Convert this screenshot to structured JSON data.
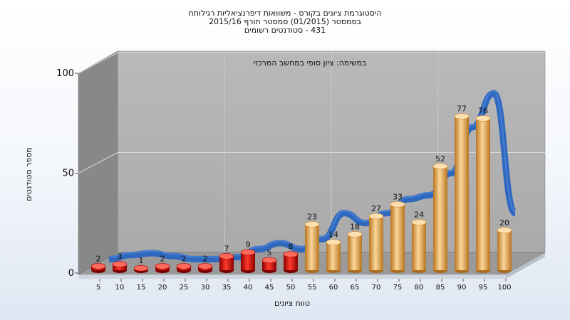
{
  "chart_data": {
    "type": "bar",
    "title_lines": [
      "היסטוגרמת ציונים בקורס - משוואות דיפרנציאליות רגילותח",
      "בסמסטר  (01/2015)  סמסטר חורף 2015/16",
      "431 - סטודנטים רשומים"
    ],
    "annotation": "במשימה: ציון סופי במחשב המרכזי",
    "xlabel": "טווח ציונים",
    "ylabel": "מספר סטודנטים",
    "categories": [
      "5",
      "10",
      "15",
      "20",
      "25",
      "30",
      "35",
      "40",
      "45",
      "50",
      "55",
      "60",
      "65",
      "70",
      "75",
      "80",
      "85",
      "90",
      "95",
      "100"
    ],
    "values": [
      2,
      3,
      1,
      2,
      2,
      2,
      7,
      9,
      5,
      8,
      23,
      14,
      18,
      27,
      33,
      24,
      52,
      77,
      76,
      20
    ],
    "ylim": [
      0,
      100
    ],
    "yticks": [
      0,
      50,
      100
    ],
    "trend": [
      2,
      4,
      5,
      3.5,
      2,
      2,
      3,
      7,
      10,
      7,
      12,
      25,
      20,
      25,
      32,
      34,
      45,
      68,
      85,
      25
    ],
    "red_threshold": 50,
    "colors": {
      "fail": "#e01010",
      "pass": "#f2b04c",
      "trend": "#2f68bf",
      "wall_back": "#b4b4b4",
      "wall_left": "#8a8a8a",
      "floor": "#9b9b9b"
    }
  }
}
